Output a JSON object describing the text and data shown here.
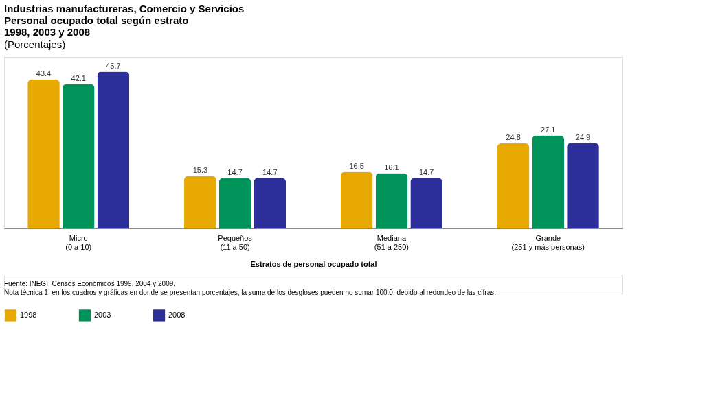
{
  "chart_data": {
    "type": "bar",
    "title": "Industrias manufactureras, Comercio y Servicios\nPersonal ocupado total según estrato\n1998, 2003 y 2008",
    "subtitle": "(Porcentajes)",
    "xlabel": "Estratos de personal ocupado total",
    "categories": [
      "Micro\n(0 a 10)",
      "Pequeños\n(11 a 50)",
      "Mediana\n(51 a 250)",
      "Grande\n(251 y más personas)"
    ],
    "series": [
      {
        "name": "1998",
        "color": "#e8a900",
        "values": [
          43.4,
          15.3,
          16.5,
          24.8
        ]
      },
      {
        "name": "2003",
        "color": "#00935a",
        "values": [
          42.1,
          14.7,
          16.1,
          27.1
        ]
      },
      {
        "name": "2008",
        "color": "#2c2f99",
        "values": [
          45.7,
          14.7,
          14.7,
          24.9
        ]
      }
    ],
    "data_labels": true,
    "legend": "bottom",
    "grid": false,
    "annotations": [
      "Fuente: INEGI. Censos Económicos  1999, 2004 y 2009.",
      "Nota técnica 1: en los cuadros y gráficas en donde se presentan porcentajes, la suma de los desgloses pueden no sumar 100.0, debido al redondeo de las cifras."
    ]
  }
}
